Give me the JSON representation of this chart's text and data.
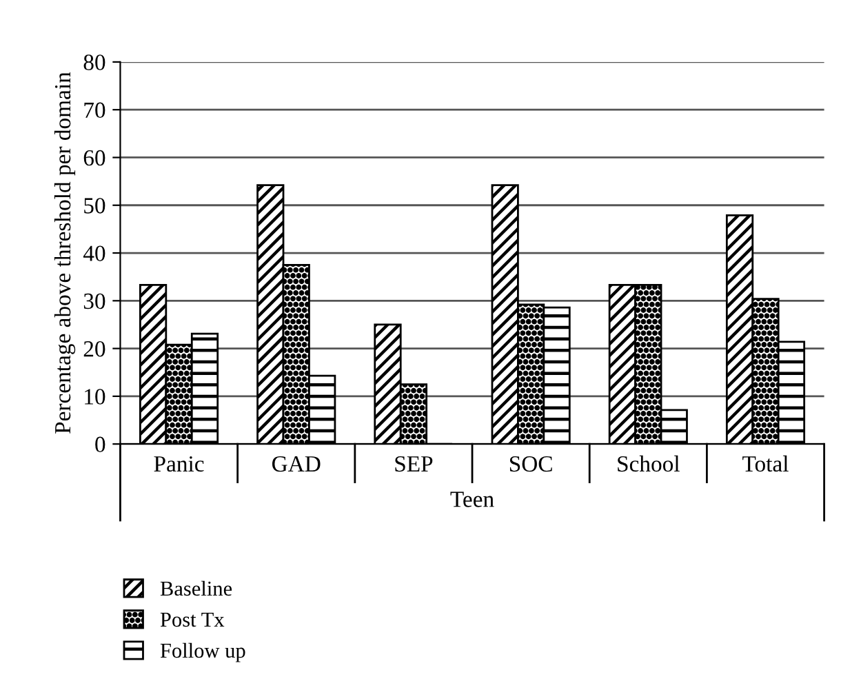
{
  "chart_data": {
    "type": "bar",
    "categories": [
      "Panic",
      "GAD",
      "SEP",
      "SOC",
      "School",
      "Total"
    ],
    "xlabel": "Teen",
    "ylabel": "Percentage above threshold per domain",
    "series": [
      {
        "name": "Baseline",
        "color": "#000000",
        "values": [
          33.3,
          54.2,
          25,
          54.2,
          33.3,
          47.9
        ]
      },
      {
        "name": "Post Tx",
        "color": "#000000",
        "values": [
          20.8,
          37.5,
          12.5,
          29.2,
          33.3,
          30.4
        ]
      },
      {
        "name": "Follow up",
        "color": "#000000",
        "values": [
          23.1,
          14.3,
          0,
          28.6,
          7.1,
          21.4
        ]
      }
    ],
    "ylim": [
      0,
      80
    ],
    "yticks": [
      0,
      10,
      20,
      30,
      40,
      50,
      60,
      70,
      80
    ],
    "grid": "y",
    "legend": "bottom left"
  }
}
